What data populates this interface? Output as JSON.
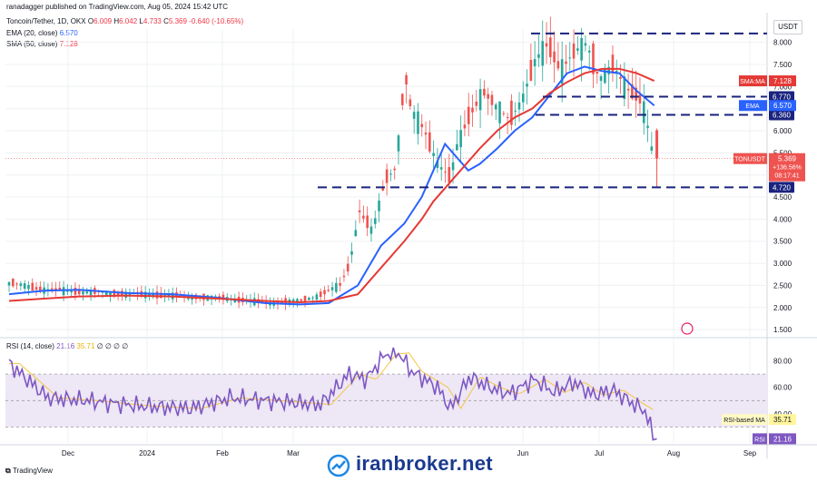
{
  "header": {
    "published": "ranadagger published on TradingView.com, Aug 05, 2024 15:42 UTC",
    "symbol": "Toncoin/Tether, 1D, OKX",
    "ohlc": {
      "o_label": "O",
      "o": "6.009",
      "h_label": "H",
      "h": "6.042",
      "l_label": "L",
      "l": "4.733",
      "c_label": "C",
      "c": "5.369",
      "change": "-0.640 (-10.65%)"
    },
    "ema_label": "EMA (20, close)",
    "ema_value": "6.570",
    "sma_label": "SMA (50, close)",
    "sma_value": "7.128",
    "rsi_label": "RSI (14, close)",
    "rsi_value": "21.16",
    "rsi_ma_value": "35.71",
    "rsi_extra": "∅ ∅ ∅ ∅",
    "currency": "USDT"
  },
  "footer": {
    "tv": "TradingView",
    "watermark": "iranbroker.net"
  },
  "colors": {
    "up": "#26a69a",
    "down": "#ef5350",
    "ema": "#2962ff",
    "sma": "#e53935",
    "rsi": "#7e57c2",
    "rsi_ma": "#f5c542",
    "dash": "#1a237e",
    "grid": "#eef0f3"
  },
  "chart_data": [
    {
      "type": "candlestick",
      "title": "Toncoin/Tether, 1D, OKX",
      "ylim": [
        1.4,
        8.3
      ],
      "y_ticks": [
        "8.000",
        "7.500",
        "7.000",
        "6.500",
        "6.000",
        "5.500",
        "5.000",
        "4.500",
        "4.000",
        "3.500",
        "3.000",
        "2.500",
        "2.000",
        "1.500"
      ],
      "x_labels": [
        "Dec",
        "2024",
        "Feb",
        "Mar",
        "Jun",
        "Jul",
        "Aug",
        "Sep"
      ],
      "price_levels": [
        {
          "label": "6.770",
          "value": 6.77
        },
        {
          "label": "6.360",
          "value": 6.36
        },
        {
          "label": "4.720",
          "value": 4.72
        },
        {
          "label": "",
          "value": 8.2
        }
      ],
      "tags": [
        {
          "label": "SMA:MA",
          "value": "7.128"
        },
        {
          "label": "EMA",
          "value": "6.570"
        },
        {
          "label": "TONUSDT",
          "value": "5.369",
          "change": "+136.56%",
          "timer": "08:17:41"
        }
      ],
      "series": [
        {
          "name": "EMA",
          "points": [
            [
              0,
              2.3
            ],
            [
              30,
              2.38
            ],
            [
              60,
              2.4
            ],
            [
              100,
              2.33
            ],
            [
              140,
              2.3
            ],
            [
              180,
              2.22
            ],
            [
              220,
              2.1
            ],
            [
              250,
              2.07
            ],
            [
              275,
              2.1
            ],
            [
              300,
              2.5
            ],
            [
              320,
              3.4
            ],
            [
              340,
              3.9
            ],
            [
              355,
              4.5
            ],
            [
              365,
              5.1
            ],
            [
              375,
              5.7
            ],
            [
              385,
              5.4
            ],
            [
              395,
              5.1
            ],
            [
              405,
              5.25
            ],
            [
              420,
              5.6
            ],
            [
              435,
              6.0
            ],
            [
              450,
              6.3
            ],
            [
              465,
              6.8
            ],
            [
              480,
              7.3
            ],
            [
              495,
              7.45
            ],
            [
              510,
              7.35
            ],
            [
              525,
              7.3
            ],
            [
              540,
              6.9
            ],
            [
              555,
              6.57
            ]
          ]
        },
        {
          "name": "SMA",
          "points": [
            [
              0,
              2.15
            ],
            [
              30,
              2.2
            ],
            [
              60,
              2.25
            ],
            [
              100,
              2.27
            ],
            [
              140,
              2.25
            ],
            [
              180,
              2.2
            ],
            [
              220,
              2.15
            ],
            [
              250,
              2.12
            ],
            [
              275,
              2.15
            ],
            [
              300,
              2.3
            ],
            [
              320,
              2.9
            ],
            [
              340,
              3.5
            ],
            [
              355,
              4.0
            ],
            [
              365,
              4.4
            ],
            [
              375,
              4.7
            ],
            [
              385,
              5.0
            ],
            [
              395,
              5.3
            ],
            [
              405,
              5.6
            ],
            [
              420,
              6.0
            ],
            [
              435,
              6.3
            ],
            [
              450,
              6.5
            ],
            [
              465,
              6.85
            ],
            [
              480,
              7.1
            ],
            [
              495,
              7.3
            ],
            [
              510,
              7.4
            ],
            [
              525,
              7.4
            ],
            [
              540,
              7.3
            ],
            [
              555,
              7.128
            ]
          ]
        }
      ]
    },
    {
      "type": "line",
      "title": "RSI (14, close)",
      "ylim": [
        18,
        92
      ],
      "y_ticks": [
        "80.00",
        "60.00",
        "40.00"
      ],
      "band": [
        30,
        70
      ],
      "tags": [
        {
          "label": "RSI-based MA",
          "value": "35.71"
        },
        {
          "label": "RSI",
          "value": "21.16"
        }
      ]
    }
  ]
}
